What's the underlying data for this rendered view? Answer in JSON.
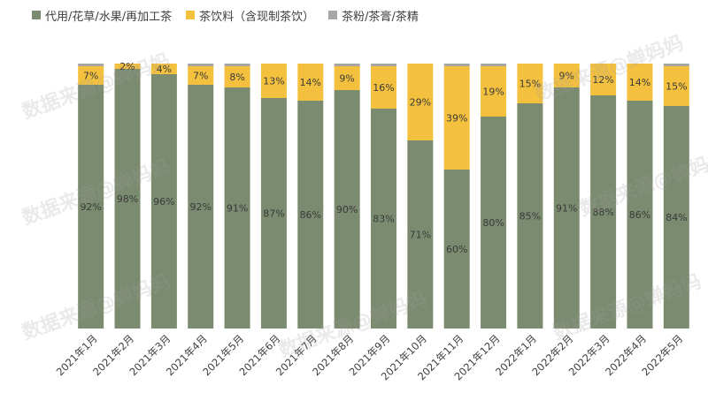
{
  "legend": [
    {
      "label": "代用/花草/水果/再加工茶",
      "color": "#7b8b6f"
    },
    {
      "label": "茶饮料（含现制茶饮）",
      "color": "#f4c13e"
    },
    {
      "label": "茶粉/茶膏/茶精",
      "color": "#a6a6a6"
    }
  ],
  "watermark": "数据来源@蝉妈妈",
  "chart_data": {
    "type": "bar",
    "stacked": true,
    "categories": [
      "2021年1月",
      "2021年2月",
      "2021年3月",
      "2021年4月",
      "2021年5月",
      "2021年6月",
      "2021年7月",
      "2021年8月",
      "2021年9月",
      "2021年10月",
      "2021年11月",
      "2021年12月",
      "2022年1月",
      "2022年2月",
      "2022年3月",
      "2022年4月",
      "2022年5月"
    ],
    "series": [
      {
        "name": "代用/花草/水果/再加工茶",
        "color": "#7b8b6f",
        "values": [
          92,
          98,
          96,
          92,
          91,
          87,
          86,
          90,
          83,
          71,
          60,
          80,
          85,
          91,
          88,
          86,
          84
        ]
      },
      {
        "name": "茶饮料（含现制茶饮）",
        "color": "#f4c13e",
        "values": [
          7,
          2,
          4,
          7,
          8,
          13,
          14,
          9,
          16,
          29,
          39,
          19,
          15,
          9,
          12,
          14,
          15
        ]
      },
      {
        "name": "茶粉/茶膏/茶精",
        "color": "#a6a6a6",
        "values": [
          1,
          0,
          0,
          1,
          1,
          0,
          0,
          1,
          1,
          0,
          1,
          1,
          0,
          0,
          0,
          0,
          1
        ]
      }
    ],
    "labels": {
      "series0": [
        "92%",
        "98%",
        "96%",
        "92%",
        "91%",
        "87%",
        "86%",
        "90%",
        "83%",
        "71%",
        "60%",
        "80%",
        "85%",
        "91%",
        "88%",
        "86%",
        "84%"
      ],
      "series1": [
        "7%",
        "2%",
        "4%",
        "7%",
        "8%",
        "13%",
        "14%",
        "9%",
        "16%",
        "29%",
        "39%",
        "19%",
        "15%",
        "9%",
        "12%",
        "14%",
        "15%"
      ]
    },
    "ylim": [
      0,
      100
    ]
  }
}
